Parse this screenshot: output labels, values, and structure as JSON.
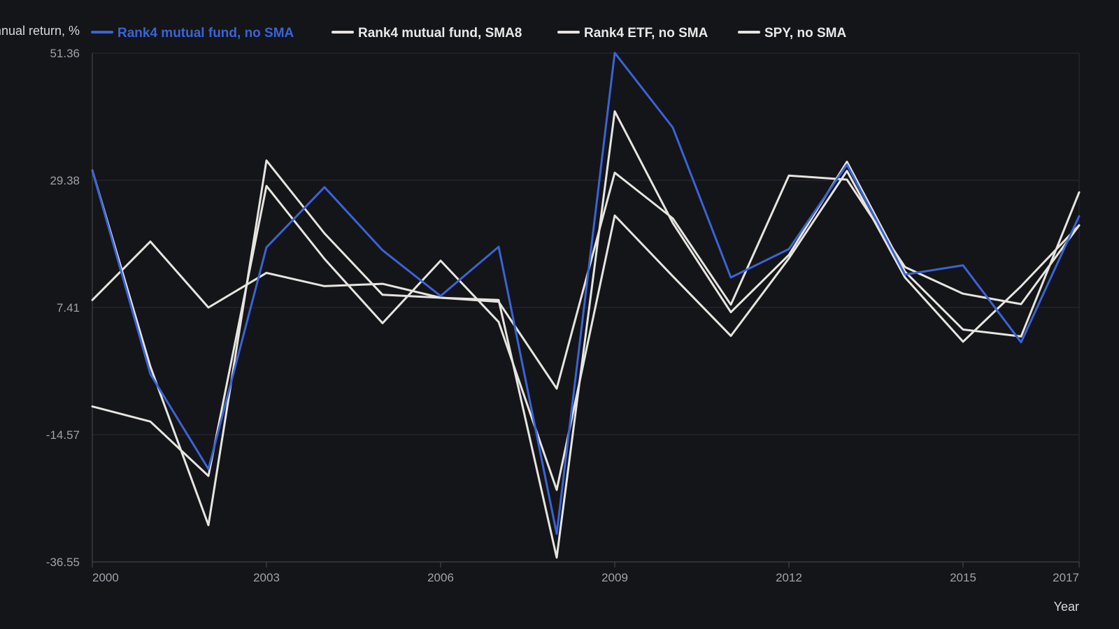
{
  "chart_data": {
    "type": "line",
    "title": "",
    "xlabel": "Year",
    "ylabel": "Annual return, %",
    "xlim": [
      2000,
      2017
    ],
    "ylim": [
      -36.55,
      51.36
    ],
    "x_ticks": [
      "2000",
      "2003",
      "2006",
      "2009",
      "2012",
      "2015",
      "2017"
    ],
    "y_ticks": [
      "51.36",
      "29.38",
      "7.41",
      "-14.57",
      "-36.55"
    ],
    "grid": "horizontal",
    "legend_position": "top",
    "x": [
      2000,
      2001,
      2002,
      2003,
      2004,
      2005,
      2006,
      2007,
      2008,
      2009,
      2010,
      2011,
      2012,
      2013,
      2014,
      2015,
      2016,
      2017
    ],
    "series": [
      {
        "name": "Rank4 mutual fund, no SMA",
        "color": "#3a63d6",
        "values": [
          31.1,
          -4.1,
          -20.5,
          17.8,
          28.2,
          17.3,
          9.4,
          17.9,
          -31.7,
          51.4,
          38.5,
          12.6,
          17.5,
          32.1,
          13.1,
          14.7,
          1.4,
          23.2
        ]
      },
      {
        "name": "Rank4 mutual fund, SMA8",
        "color": "#e6e4df",
        "values": [
          31.1,
          -2.8,
          -30.2,
          32.8,
          20.2,
          9.6,
          9.1,
          8.7,
          -35.8,
          41.3,
          22.0,
          6.6,
          16.5,
          32.6,
          13.6,
          3.6,
          2.4,
          27.3
        ]
      },
      {
        "name": "Rank4 ETF, no SMA",
        "color": "#e6e4df",
        "values": [
          8.7,
          18.8,
          7.4,
          13.4,
          11.1,
          11.5,
          9.1,
          8.4,
          -6.6,
          30.7,
          22.8,
          7.9,
          30.2,
          29.5,
          14.4,
          9.8,
          8.0,
          21.6
        ]
      },
      {
        "name": "SPY, no SMA",
        "color": "#e6e4df",
        "values": [
          -9.7,
          -12.3,
          -21.7,
          28.4,
          15.8,
          4.7,
          15.5,
          4.9,
          -24.1,
          23.3,
          12.8,
          2.5,
          15.9,
          31.0,
          12.6,
          1.5,
          11.1,
          21.6
        ]
      }
    ]
  }
}
